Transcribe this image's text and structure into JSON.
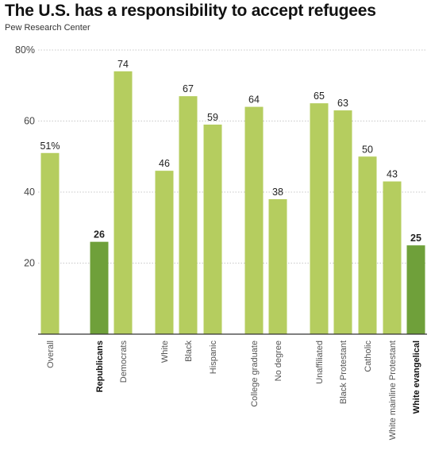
{
  "title": "The U.S. has a responsibility to accept refugees",
  "source": "Pew Research Center",
  "colors": {
    "light": "#b5cd5f",
    "dark": "#6fa03a",
    "grid": "#c8c8c8",
    "baseline": "#333333"
  },
  "chart_data": {
    "type": "bar",
    "title": "The U.S. has a responsibility to accept refugees",
    "xlabel": "",
    "ylabel": "",
    "ylim": [
      0,
      80
    ],
    "yticks": [
      20,
      40,
      60,
      80
    ],
    "ytick_labels": [
      "20",
      "40",
      "60",
      "80%"
    ],
    "grid": true,
    "categories": [
      "Overall",
      "Republicans",
      "Democrats",
      "White",
      "Black",
      "Hispanic",
      "College graduate",
      "No degree",
      "Unaffiliated",
      "Black Protestant",
      "Catholic",
      "White mainline Protestant",
      "White evangelical"
    ],
    "values": [
      51,
      26,
      74,
      46,
      67,
      59,
      64,
      38,
      65,
      63,
      50,
      43,
      25
    ],
    "value_labels": [
      "51%",
      "26",
      "74",
      "46",
      "67",
      "59",
      "64",
      "38",
      "65",
      "63",
      "50",
      "43",
      "25"
    ],
    "highlight": [
      false,
      true,
      false,
      false,
      false,
      false,
      false,
      false,
      false,
      false,
      false,
      false,
      true
    ]
  }
}
